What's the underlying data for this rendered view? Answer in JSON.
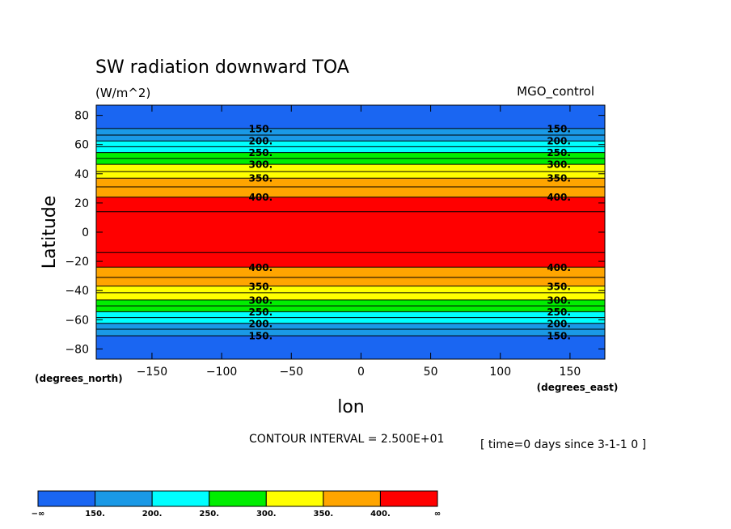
{
  "chart_data": {
    "type": "heatmap",
    "title": "SW radiation downward TOA",
    "units": "(W/m^2)",
    "dataset": "MGO_control",
    "xlabel": "lon",
    "ylabel": "Latitude",
    "x_units": "(degrees_east)",
    "y_units": "(degrees_north)",
    "xlim": [
      -190,
      175
    ],
    "ylim": [
      -87,
      87
    ],
    "x_ticks": [
      -150,
      -100,
      -50,
      0,
      50,
      100,
      150
    ],
    "x_tick_labels": [
      "−150",
      "−100",
      "−50",
      "0",
      "50",
      "100",
      "150"
    ],
    "y_ticks": [
      80,
      60,
      40,
      20,
      0,
      -20,
      -40,
      -60,
      -80
    ],
    "y_tick_labels": [
      "80",
      "60",
      "40",
      "20",
      "0",
      "−20",
      "−40",
      "−60",
      "−80"
    ],
    "contour_interval_text": "CONTOUR INTERVAL = 2.500E+01",
    "time_text": "[ time=0 days since 3-1-1 0 ]",
    "colorbar": {
      "colors": [
        "#1a66f2",
        "#1a99e6",
        "#00ffff",
        "#00ee00",
        "#ffff00",
        "#ffa500",
        "#ff0000"
      ],
      "labels": [
        "−∞",
        "150.",
        "200.",
        "250.",
        "300.",
        "350.",
        "400.",
        "∞"
      ]
    },
    "level_colors": {
      "below_150": "#1a66f2",
      "150_175": "#1a99e6",
      "175_200": "#1a99e6",
      "200_225": "#00ffff",
      "225_250": "#00ffff",
      "250_275": "#00ee00",
      "275_300": "#00ee00",
      "300_325": "#ffff00",
      "325_350": "#ffff00",
      "350_375": "#ffa500",
      "375_400": "#ffa500",
      "above_400": "#ff0000"
    },
    "contours": [
      {
        "level": 150,
        "lats": [
          71,
          -71
        ],
        "label": "150."
      },
      {
        "level": 175,
        "lats": [
          66.5,
          -66.5
        ],
        "label": ""
      },
      {
        "level": 200,
        "lats": [
          62.5,
          -62.5
        ],
        "label": "200."
      },
      {
        "level": 225,
        "lats": [
          58.5,
          -58.5
        ],
        "label": ""
      },
      {
        "level": 250,
        "lats": [
          54.5,
          -54.5
        ],
        "label": "250."
      },
      {
        "level": 275,
        "lats": [
          50.5,
          -50.5
        ],
        "label": ""
      },
      {
        "level": 300,
        "lats": [
          46.5,
          -46.5
        ],
        "label": "300."
      },
      {
        "level": 325,
        "lats": [
          41.5,
          -41.5
        ],
        "label": ""
      },
      {
        "level": 350,
        "lats": [
          37,
          -37
        ],
        "label": "350."
      },
      {
        "level": 375,
        "lats": [
          31,
          -31
        ],
        "label": ""
      },
      {
        "level": 400,
        "lats": [
          24,
          -24
        ],
        "label": "400."
      },
      {
        "level": 425,
        "lats": [
          14,
          -14
        ],
        "label": ""
      }
    ],
    "contour_label_lons": [
      -72,
      142
    ],
    "grid": false
  }
}
